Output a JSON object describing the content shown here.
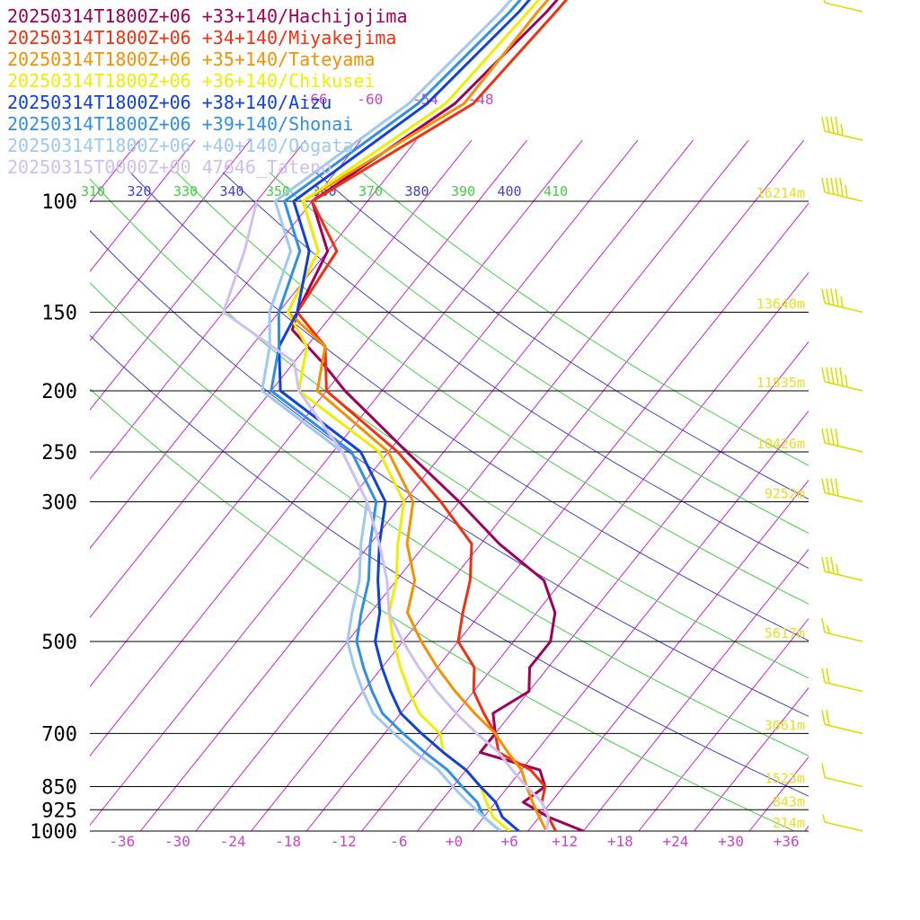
{
  "chart_data": {
    "type": "line",
    "legend_placement": "top-left",
    "legend": [
      {
        "label": "20250314T1800Z+06 +33+140/Hachijojima",
        "color": "#a0005a"
      },
      {
        "label": "20250314T1800Z+06 +34+140/Miyakejima",
        "color": "#f03010"
      },
      {
        "label": "20250314T1800Z+06 +35+140/Tateyama",
        "color": "#f59000"
      },
      {
        "label": "20250314T1800Z+06 +36+140/Chikusei",
        "color": "#eeee00"
      },
      {
        "label": "20250314T1800Z+06 +38+140/Aizu",
        "color": "#1040e0"
      },
      {
        "label": "20250314T1800Z+06 +39+140/Shonai",
        "color": "#2f8fe8"
      },
      {
        "label": "20250314T1800Z+06 +40+140/Oogata",
        "color": "#9cc8f2"
      },
      {
        "label": "20250315T0000Z+00 47646_Tateno",
        "color": "#cfc0f0"
      }
    ],
    "pressure_levels": [
      {
        "p": 100,
        "label": "100",
        "height": "16214m"
      },
      {
        "p": 150,
        "label": "150",
        "height": "13640m"
      },
      {
        "p": 200,
        "label": "200",
        "height": "11835m"
      },
      {
        "p": 250,
        "label": "250",
        "height": "10426m"
      },
      {
        "p": 300,
        "label": "300",
        "height": "9252m"
      },
      {
        "p": 500,
        "label": "500",
        "height": "5617m"
      },
      {
        "p": 700,
        "label": "700",
        "height": "3061m"
      },
      {
        "p": 850,
        "label": "850",
        "height": "1523m"
      },
      {
        "p": 925,
        "label": "925",
        "height": "843m"
      },
      {
        "p": 1000,
        "label": "1000",
        "height": "214m"
      }
    ],
    "x_ticks": [
      "-36",
      "-30",
      "-24",
      "-18",
      "-12",
      "-6",
      "+0",
      "+6",
      "+12",
      "+18",
      "+24",
      "+30",
      "+36"
    ],
    "x_tick_values": [
      -36,
      -30,
      -24,
      -18,
      -12,
      -6,
      0,
      6,
      12,
      18,
      24,
      30,
      36
    ],
    "upper_temp_labels": [
      {
        "label": "-66",
        "t": -66
      },
      {
        "label": "-60",
        "t": -60
      },
      {
        "label": "-54",
        "t": -54
      },
      {
        "label": "-48",
        "t": -48
      }
    ],
    "theta_labels": [
      "310",
      "320",
      "330",
      "340",
      "350",
      "360",
      "370",
      "380",
      "390",
      "400",
      "410"
    ],
    "theta_values": [
      310,
      320,
      330,
      340,
      350,
      360,
      370,
      380,
      390,
      400,
      410
    ],
    "theta_label_colors": [
      "#40d040",
      "#4040d0",
      "#40d040",
      "#4040d0",
      "#40d040",
      "#4040d0",
      "#40d040",
      "#4040d0",
      "#40d040",
      "#4040d0",
      "#40d040"
    ],
    "colors": {
      "isotherm": "#cc22cc",
      "isobar": "#000000",
      "dry_adiabat_green": "#44ee44",
      "dry_adiabat_blue": "#4444dd",
      "height_label": "#e8e020",
      "tick_label": "#cc44cc",
      "wind_barb": "#dddd00"
    },
    "series": [
      {
        "name": "20250314T1800Z+06 +33+140/Hachijojima",
        "color": "#a0005a",
        "points": [
          [
            1000,
            14
          ],
          [
            950,
            9
          ],
          [
            900,
            5
          ],
          [
            850,
            6
          ],
          [
            800,
            4
          ],
          [
            750,
            -4
          ],
          [
            700,
            -4
          ],
          [
            650,
            -6
          ],
          [
            600,
            -4
          ],
          [
            550,
            -6
          ],
          [
            500,
            -6
          ],
          [
            450,
            -8
          ],
          [
            400,
            -12
          ],
          [
            350,
            -20
          ],
          [
            300,
            -28
          ],
          [
            250,
            -38
          ],
          [
            200,
            -50
          ],
          [
            180,
            -55
          ],
          [
            160,
            -61
          ],
          [
            150,
            -62
          ],
          [
            120,
            -64
          ],
          [
            100,
            -70
          ],
          [
            70,
            -63
          ],
          [
            50,
            -61
          ],
          [
            30,
            -60
          ]
        ]
      },
      {
        "name": "20250314T1800Z+06 +34+140/Miyakejima",
        "color": "#f03010",
        "points": [
          [
            1000,
            11
          ],
          [
            950,
            9
          ],
          [
            900,
            7
          ],
          [
            850,
            6
          ],
          [
            800,
            3
          ],
          [
            750,
            -2
          ],
          [
            700,
            -4
          ],
          [
            650,
            -7
          ],
          [
            600,
            -10
          ],
          [
            550,
            -12
          ],
          [
            500,
            -16
          ],
          [
            450,
            -18
          ],
          [
            400,
            -20
          ],
          [
            350,
            -23
          ],
          [
            300,
            -30
          ],
          [
            250,
            -39
          ],
          [
            200,
            -52
          ],
          [
            170,
            -56
          ],
          [
            150,
            -62
          ],
          [
            120,
            -63
          ],
          [
            100,
            -70
          ],
          [
            70,
            -61
          ],
          [
            50,
            -60
          ],
          [
            30,
            -59
          ]
        ]
      },
      {
        "name": "20250314T1800Z+06 +35+140/Tateyama",
        "color": "#f59000",
        "points": [
          [
            1000,
            10
          ],
          [
            950,
            8
          ],
          [
            900,
            6
          ],
          [
            850,
            4
          ],
          [
            800,
            2
          ],
          [
            750,
            -1
          ],
          [
            700,
            -4
          ],
          [
            650,
            -8
          ],
          [
            600,
            -12
          ],
          [
            550,
            -16
          ],
          [
            500,
            -20
          ],
          [
            450,
            -24
          ],
          [
            400,
            -26
          ],
          [
            350,
            -30
          ],
          [
            300,
            -33
          ],
          [
            250,
            -40
          ],
          [
            200,
            -53
          ],
          [
            170,
            -56
          ],
          [
            150,
            -63
          ],
          [
            120,
            -65
          ],
          [
            100,
            -71
          ],
          [
            70,
            -62
          ],
          [
            50,
            -62
          ],
          [
            30,
            -61
          ]
        ]
      },
      {
        "name": "20250314T1800Z+06 +36+140/Chikusei",
        "color": "#eeee00",
        "points": [
          [
            1000,
            6
          ],
          [
            950,
            3
          ],
          [
            900,
            1
          ],
          [
            850,
            -1
          ],
          [
            800,
            -4
          ],
          [
            750,
            -8
          ],
          [
            700,
            -10
          ],
          [
            650,
            -14
          ],
          [
            600,
            -17
          ],
          [
            550,
            -20
          ],
          [
            500,
            -23
          ],
          [
            450,
            -26
          ],
          [
            400,
            -28
          ],
          [
            350,
            -31
          ],
          [
            300,
            -34
          ],
          [
            250,
            -41
          ],
          [
            200,
            -55
          ],
          [
            170,
            -58
          ],
          [
            150,
            -63
          ],
          [
            120,
            -65
          ],
          [
            100,
            -71
          ],
          [
            70,
            -64
          ],
          [
            50,
            -63
          ],
          [
            30,
            -62
          ]
        ]
      },
      {
        "name": "20250314T1800Z+06 +38+140/Aizu",
        "color": "#1040e0",
        "points": [
          [
            1000,
            7
          ],
          [
            950,
            4
          ],
          [
            900,
            2
          ],
          [
            850,
            -1
          ],
          [
            800,
            -4
          ],
          [
            750,
            -8
          ],
          [
            700,
            -12
          ],
          [
            650,
            -16
          ],
          [
            600,
            -19
          ],
          [
            550,
            -22
          ],
          [
            500,
            -25
          ],
          [
            450,
            -27
          ],
          [
            400,
            -30
          ],
          [
            350,
            -33
          ],
          [
            300,
            -36
          ],
          [
            250,
            -43
          ],
          [
            200,
            -57
          ],
          [
            170,
            -61
          ],
          [
            150,
            -62
          ],
          [
            120,
            -66
          ],
          [
            100,
            -72
          ],
          [
            70,
            -66
          ],
          [
            50,
            -64
          ],
          [
            30,
            -63
          ]
        ]
      },
      {
        "name": "20250314T1800Z+06 +39+140/Shonai",
        "color": "#2f8fe8",
        "points": [
          [
            1000,
            5
          ],
          [
            950,
            2
          ],
          [
            900,
            0
          ],
          [
            850,
            -3
          ],
          [
            800,
            -6
          ],
          [
            750,
            -10
          ],
          [
            700,
            -14
          ],
          [
            650,
            -18
          ],
          [
            600,
            -21
          ],
          [
            550,
            -24
          ],
          [
            500,
            -27
          ],
          [
            450,
            -29
          ],
          [
            400,
            -31
          ],
          [
            350,
            -34
          ],
          [
            300,
            -37
          ],
          [
            250,
            -44
          ],
          [
            200,
            -58
          ],
          [
            170,
            -61
          ],
          [
            150,
            -64
          ],
          [
            120,
            -67
          ],
          [
            100,
            -73
          ],
          [
            70,
            -67
          ],
          [
            50,
            -65
          ],
          [
            30,
            -64
          ]
        ]
      },
      {
        "name": "20250314T1800Z+06 +40+140/Oogata",
        "color": "#9cc8f2",
        "points": [
          [
            1000,
            5
          ],
          [
            950,
            2
          ],
          [
            900,
            -1
          ],
          [
            850,
            -4
          ],
          [
            800,
            -7
          ],
          [
            750,
            -11
          ],
          [
            700,
            -15
          ],
          [
            650,
            -19
          ],
          [
            600,
            -22
          ],
          [
            550,
            -25
          ],
          [
            500,
            -28
          ],
          [
            450,
            -30
          ],
          [
            400,
            -32
          ],
          [
            350,
            -35
          ],
          [
            300,
            -38
          ],
          [
            250,
            -45
          ],
          [
            200,
            -59
          ],
          [
            170,
            -62
          ],
          [
            150,
            -65
          ],
          [
            120,
            -68
          ],
          [
            100,
            -74
          ],
          [
            70,
            -68
          ],
          [
            50,
            -66
          ],
          [
            30,
            -65
          ]
        ]
      },
      {
        "name": "20250315T0000Z+00 47646_Tateno",
        "color": "#cfc0f0",
        "points": [
          [
            1000,
            10
          ],
          [
            950,
            9
          ],
          [
            900,
            7
          ],
          [
            850,
            4
          ],
          [
            800,
            1
          ],
          [
            750,
            -2
          ],
          [
            700,
            -6
          ],
          [
            650,
            -10
          ],
          [
            600,
            -14
          ],
          [
            550,
            -18
          ],
          [
            500,
            -22
          ],
          [
            450,
            -26
          ],
          [
            400,
            -29
          ],
          [
            350,
            -33
          ],
          [
            300,
            -38
          ],
          [
            250,
            -45
          ],
          [
            200,
            -55
          ],
          [
            180,
            -58
          ],
          [
            150,
            -70
          ],
          [
            120,
            -73
          ],
          [
            100,
            -76
          ]
        ]
      }
    ],
    "wind_barbs": [
      {
        "p": 50,
        "speed_kt": 10
      },
      {
        "p": 80,
        "speed_kt": 45
      },
      {
        "p": 100,
        "speed_kt": 55
      },
      {
        "p": 150,
        "speed_kt": 45
      },
      {
        "p": 200,
        "speed_kt": 55
      },
      {
        "p": 250,
        "speed_kt": 40
      },
      {
        "p": 300,
        "speed_kt": 40
      },
      {
        "p": 400,
        "speed_kt": 35
      },
      {
        "p": 500,
        "speed_kt": 15
      },
      {
        "p": 600,
        "speed_kt": 20
      },
      {
        "p": 700,
        "speed_kt": 20
      },
      {
        "p": 850,
        "speed_kt": 10
      },
      {
        "p": 1000,
        "speed_kt": 5
      }
    ]
  }
}
